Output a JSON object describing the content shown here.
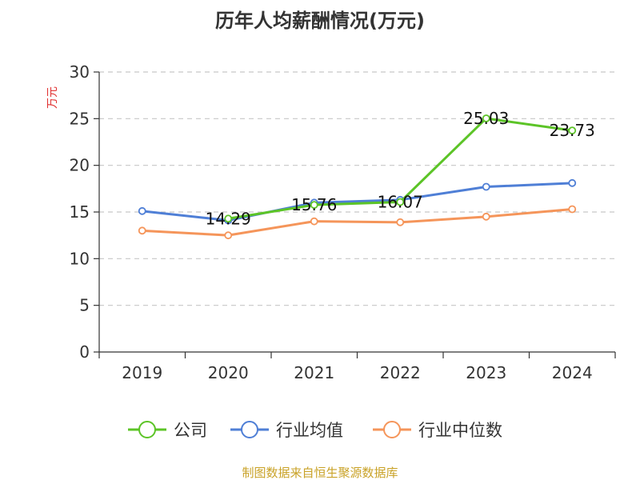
{
  "chart_data": {
    "type": "line",
    "title": "历年人均薪酬情况(万元)",
    "ylabel": "万元",
    "xlabel": "",
    "categories": [
      "2019",
      "2020",
      "2021",
      "2022",
      "2023",
      "2024"
    ],
    "ylim": [
      0,
      30
    ],
    "yticks": [
      0,
      5,
      10,
      15,
      20,
      25,
      30
    ],
    "grid": true,
    "legend_position": "bottom",
    "series": [
      {
        "name": "公司",
        "color": "#5cc427",
        "values": [
          null,
          14.29,
          15.76,
          16.07,
          25.03,
          23.73
        ],
        "labels": [
          "",
          "14.29",
          "15.76",
          "16.07",
          "25.03",
          "23.73"
        ]
      },
      {
        "name": "行业均值",
        "color": "#4f7fd6",
        "values": [
          15.1,
          14.1,
          16.0,
          16.3,
          17.7,
          18.1
        ]
      },
      {
        "name": "行业中位数",
        "color": "#f5955a",
        "values": [
          13.0,
          12.5,
          14.0,
          13.9,
          14.5,
          15.3
        ]
      }
    ]
  },
  "source": "制图数据来自恒生聚源数据库"
}
